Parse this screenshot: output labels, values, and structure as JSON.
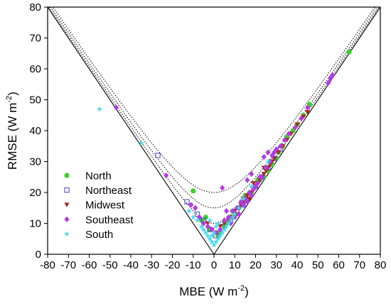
{
  "chart_data": {
    "type": "scatter",
    "xlabel": "MBE (W m",
    "xlabel_sup": "-2",
    "xlabel_end": ")",
    "ylabel": "RMSE (W m",
    "ylabel_sup": "-2",
    "ylabel_end": ")",
    "xlim": [
      -80,
      80
    ],
    "ylim": [
      0,
      80
    ],
    "xticks": [
      -80,
      -70,
      -60,
      -50,
      -40,
      -30,
      -20,
      -10,
      0,
      10,
      20,
      30,
      40,
      50,
      60,
      70,
      80
    ],
    "yticks": [
      0,
      10,
      20,
      30,
      40,
      50,
      60,
      70,
      80
    ],
    "xtick_labels": [
      "-80",
      "-70",
      "-60",
      "-50",
      "-40",
      "-30",
      "-20",
      "-10",
      "0",
      "10",
      "20",
      "30",
      "40",
      "50",
      "60",
      "70",
      "80"
    ],
    "ytick_labels": [
      "0",
      "10",
      "20",
      "30",
      "40",
      "50",
      "60",
      "70",
      "80"
    ],
    "grid": false,
    "legend_position": "left-middle",
    "bounds": {
      "solid": "RMSE = |MBE|",
      "dotted_sigma": [
        10,
        15,
        20
      ]
    },
    "series": [
      {
        "name": "North",
        "marker": "circle",
        "color": "#3ccf2e",
        "points": [
          [
            -10,
            20.5
          ],
          [
            -4,
            12
          ],
          [
            -2,
            8
          ],
          [
            2,
            6
          ],
          [
            5,
            9
          ],
          [
            8,
            12
          ],
          [
            10,
            13
          ],
          [
            12,
            15
          ],
          [
            14,
            17
          ],
          [
            16,
            18
          ],
          [
            18,
            20
          ],
          [
            20,
            22
          ],
          [
            22,
            24
          ],
          [
            24,
            25
          ],
          [
            26,
            27
          ],
          [
            28,
            29
          ],
          [
            30,
            31
          ],
          [
            31,
            33
          ],
          [
            33,
            35
          ],
          [
            35,
            38
          ],
          [
            38,
            40
          ],
          [
            40,
            42
          ],
          [
            43,
            45
          ],
          [
            46,
            48.5
          ],
          [
            65,
            65.5
          ],
          [
            3,
            7
          ],
          [
            6,
            10
          ],
          [
            -6,
            11
          ],
          [
            9,
            14
          ],
          [
            15,
            19
          ],
          [
            21,
            24
          ],
          [
            27,
            30
          ]
        ]
      },
      {
        "name": "Northeast",
        "marker": "square-open",
        "color": "#4a3fd0",
        "points": [
          [
            -27,
            32
          ],
          [
            -13,
            17
          ],
          [
            -8,
            13
          ],
          [
            -5,
            11
          ],
          [
            -2,
            8
          ],
          [
            1,
            6
          ],
          [
            4,
            9
          ],
          [
            8,
            11
          ],
          [
            11,
            14
          ],
          [
            14,
            16
          ],
          [
            17,
            19
          ],
          [
            20,
            22
          ],
          [
            23,
            25
          ],
          [
            26,
            28
          ],
          [
            29,
            31
          ],
          [
            32,
            34
          ]
        ]
      },
      {
        "name": "Midwest",
        "marker": "triangle-down",
        "color": "#a9281e",
        "points": [
          [
            -3,
            10
          ],
          [
            -1,
            8
          ],
          [
            1,
            7
          ],
          [
            3,
            9
          ],
          [
            5,
            10
          ],
          [
            7,
            11
          ],
          [
            9,
            12
          ],
          [
            11,
            13
          ],
          [
            12,
            15
          ],
          [
            13,
            16
          ],
          [
            14,
            17
          ],
          [
            15,
            18
          ],
          [
            16,
            19
          ],
          [
            17,
            18
          ],
          [
            18,
            20
          ],
          [
            19,
            21
          ],
          [
            20,
            22
          ],
          [
            21,
            23
          ],
          [
            22,
            24
          ],
          [
            23,
            25
          ],
          [
            24,
            26
          ],
          [
            25,
            27
          ],
          [
            26,
            28
          ],
          [
            27,
            29
          ],
          [
            28,
            30
          ],
          [
            29,
            31
          ],
          [
            31,
            33
          ],
          [
            33,
            35
          ],
          [
            35,
            37
          ],
          [
            37,
            39
          ],
          [
            40,
            42
          ],
          [
            43,
            44.5
          ],
          [
            45,
            46
          ],
          [
            10,
            14
          ],
          [
            14,
            18
          ],
          [
            19,
            23
          ],
          [
            24,
            28
          ]
        ]
      },
      {
        "name": "Southeast",
        "marker": "diamond",
        "color": "#b53ae6",
        "points": [
          [
            -47,
            47.5
          ],
          [
            -23,
            25.5
          ],
          [
            -11,
            16
          ],
          [
            -9,
            15
          ],
          [
            -7,
            12
          ],
          [
            -5,
            10
          ],
          [
            -3,
            9
          ],
          [
            -1,
            8
          ],
          [
            1,
            7
          ],
          [
            3,
            8
          ],
          [
            4,
            21.5
          ],
          [
            5,
            11
          ],
          [
            7,
            12
          ],
          [
            8,
            10
          ],
          [
            9,
            14
          ],
          [
            10,
            12
          ],
          [
            11,
            15
          ],
          [
            12,
            13
          ],
          [
            13,
            17
          ],
          [
            14,
            16
          ],
          [
            15,
            18
          ],
          [
            16,
            17
          ],
          [
            17,
            20
          ],
          [
            18,
            19
          ],
          [
            19,
            21
          ],
          [
            20,
            22
          ],
          [
            21,
            23
          ],
          [
            22,
            25
          ],
          [
            23,
            25
          ],
          [
            24,
            31.5
          ],
          [
            25,
            28
          ],
          [
            26,
            33
          ],
          [
            27,
            30
          ],
          [
            28,
            32
          ],
          [
            29,
            33
          ],
          [
            30,
            34
          ],
          [
            32,
            35
          ],
          [
            34,
            37
          ],
          [
            36,
            39
          ],
          [
            39,
            41
          ],
          [
            42,
            44
          ],
          [
            45,
            47.5
          ],
          [
            55,
            55.5
          ],
          [
            56,
            57
          ],
          [
            57,
            58
          ],
          [
            6,
            14
          ],
          [
            16,
            24
          ],
          [
            18,
            26
          ]
        ]
      },
      {
        "name": "South",
        "marker": "star",
        "color": "#45d8f0",
        "points": [
          [
            -55,
            47
          ],
          [
            -35,
            36
          ],
          [
            -12,
            14
          ],
          [
            -10,
            12
          ],
          [
            -8,
            11
          ],
          [
            -6,
            9
          ],
          [
            -5,
            8
          ],
          [
            -4,
            7
          ],
          [
            -3,
            6
          ],
          [
            -2,
            5
          ],
          [
            -1,
            4
          ],
          [
            0,
            3
          ],
          [
            1,
            4
          ],
          [
            2,
            5
          ],
          [
            3,
            6
          ],
          [
            4,
            7
          ],
          [
            5,
            8
          ],
          [
            6,
            9
          ],
          [
            7,
            10
          ],
          [
            8,
            11
          ],
          [
            9,
            12
          ],
          [
            10,
            13
          ],
          [
            12,
            15
          ],
          [
            14,
            18
          ],
          [
            18,
            22
          ],
          [
            26,
            30
          ],
          [
            -1,
            6
          ],
          [
            0,
            7
          ],
          [
            1,
            9
          ],
          [
            2,
            10
          ],
          [
            -2,
            11
          ]
        ]
      }
    ]
  }
}
